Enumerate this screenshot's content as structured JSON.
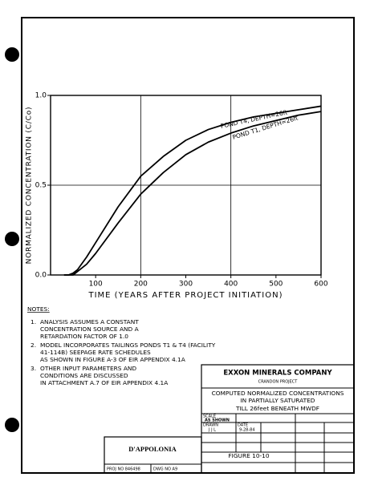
{
  "chart_data": {
    "type": "line",
    "x_label": "TIME (YEARS AFTER PROJECT INITIATION)",
    "y_label": "NORMALIZED CONCENTRATION (C/Co)",
    "x": [
      30,
      40,
      50,
      60,
      80,
      100,
      150,
      200,
      250,
      300,
      350,
      400,
      450,
      500,
      550,
      600
    ],
    "series": [
      {
        "name": "POND T4, DEPTH=26ft",
        "color": "#000000",
        "values": [
          0,
          0,
          0.01,
          0.03,
          0.1,
          0.18,
          0.38,
          0.55,
          0.66,
          0.75,
          0.81,
          0.85,
          0.88,
          0.9,
          0.92,
          0.94
        ]
      },
      {
        "name": "POND T1, DEPTH=26ft",
        "color": "#000000",
        "values": [
          0,
          0,
          0,
          0.02,
          0.06,
          0.12,
          0.29,
          0.45,
          0.57,
          0.67,
          0.74,
          0.79,
          0.83,
          0.86,
          0.89,
          0.91
        ]
      }
    ],
    "xlim": [
      0,
      600
    ],
    "xticks": [
      100,
      200,
      300,
      400,
      500,
      600
    ],
    "ylim": [
      0,
      1
    ],
    "yticks": [
      {
        "value": 0,
        "label": "0.0"
      },
      {
        "value": 0.5,
        "label": "0.5"
      },
      {
        "value": 1,
        "label": "1.0"
      }
    ],
    "xgrid": [
      200,
      400
    ],
    "ygrid": [
      0.5
    ]
  },
  "notes": {
    "heading": "NOTES:",
    "items": [
      {
        "number": "1.",
        "lines": [
          "ANALYSIS ASSUMES A CONSTANT",
          "CONCENTRATION SOURCE AND A",
          "RETARDATION FACTOR OF 1.0"
        ]
      },
      {
        "number": "2.",
        "lines": [
          "MODEL INCORPORATES TAILINGS PONDS T1 & T4 (FACILITY",
          "41-114B)   SEEPAGE RATE SCHEDULES",
          "AS SHOWN IN FIGURE A-3 OF EIR APPENDIX 4.1A"
        ]
      },
      {
        "number": "3.",
        "lines": [
          "OTHER INPUT PARAMETERS AND",
          "CONDITIONS ARE DISCUSSED",
          "IN ATTACHMENT A.7 OF EIR APPENDIX 4.1A"
        ]
      }
    ]
  },
  "title_block": {
    "company": "EXXON MINERALS COMPANY",
    "project": "CRANDON PROJECT",
    "title_lines": [
      "COMPUTED NORMALIZED CONCENTRATIONS",
      "IN PARTIALLY SATURATED",
      "TILL 26feet BENEATH MWDF"
    ],
    "scale_label": "SCALE",
    "scale": "AS SHOWN",
    "drawn_label": "DRAWN",
    "drawn": "J J L",
    "date_label": "DATE",
    "date": "9-28-84",
    "figure": "FIGURE 10-10"
  },
  "firm": {
    "name": "D'APPOLONIA",
    "proj_no": "PROJ NO 846498",
    "dwg_no": "DWG NO A9"
  }
}
